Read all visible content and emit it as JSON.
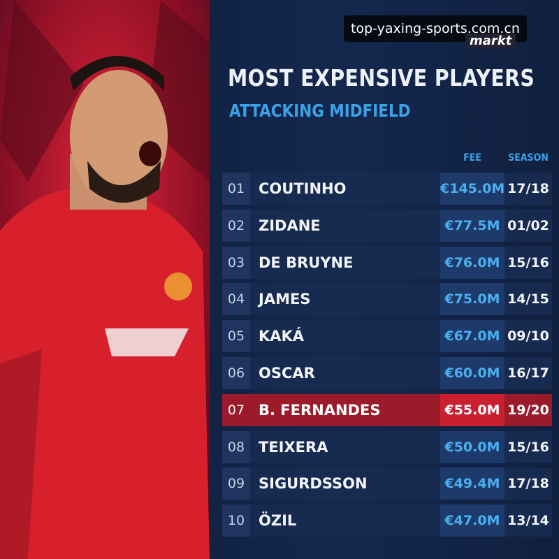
{
  "watermark": "top-yaxing-sports.com.cn",
  "logo": "markt",
  "header": {
    "title": "MOST EXPENSIVE PLAYERS",
    "subtitle": "ATTACKING MIDFIELD"
  },
  "table": {
    "columns": [
      "FEE",
      "SEASON"
    ],
    "highlight_row": 6,
    "rows": [
      [
        "01",
        "COUTINHO",
        "€145.0M",
        "17/18"
      ],
      [
        "02",
        "ZIDANE",
        "€77.5M",
        "01/02"
      ],
      [
        "03",
        "DE BRUYNE",
        "€76.0M",
        "15/16"
      ],
      [
        "04",
        "JAMES",
        "€75.0M",
        "14/15"
      ],
      [
        "05",
        "KAKÁ",
        "€67.0M",
        "09/10"
      ],
      [
        "06",
        "OSCAR",
        "€60.0M",
        "16/17"
      ],
      [
        "07",
        "B. FERNANDES",
        "€55.0M",
        "19/20"
      ],
      [
        "08",
        "TEIXERA",
        "€50.0M",
        "15/16"
      ],
      [
        "09",
        "SIGURDSSON",
        "€49.4M",
        "17/18"
      ],
      [
        "10",
        "ÖZIL",
        "€47.0M",
        "13/14"
      ]
    ]
  }
}
